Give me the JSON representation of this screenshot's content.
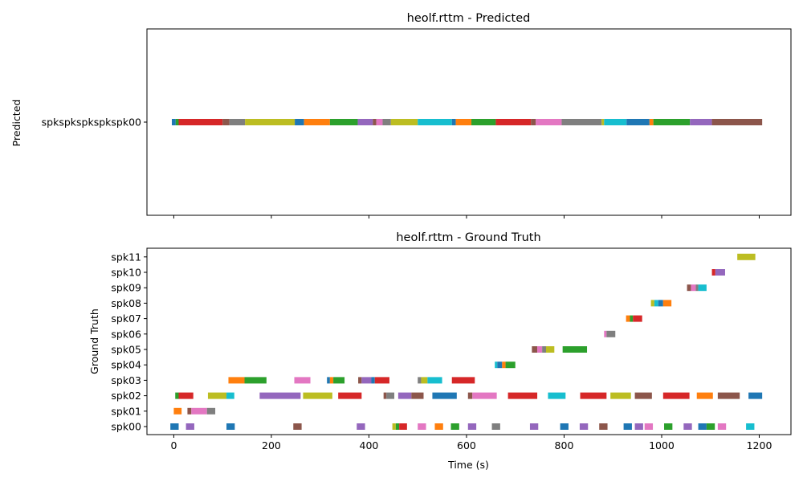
{
  "chart_data": [
    {
      "type": "timeline",
      "title": "heolf.rttm - Predicted",
      "ylabel": "Predicted",
      "xlabel": "",
      "xlim": [
        -55,
        1265
      ],
      "xticks": [
        0,
        200,
        400,
        600,
        800,
        1000,
        1200
      ],
      "show_xtick_labels": false,
      "rows": [
        "spkspkspkspkspk00"
      ],
      "colors": [
        "#1f77b4",
        "#ff7f0e",
        "#2ca02c",
        "#d62728",
        "#9467bd",
        "#8c564b",
        "#e377c2",
        "#7f7f7f",
        "#bcbd22",
        "#17becf"
      ],
      "segments": [
        {
          "row": 0,
          "start": -4,
          "end": 4,
          "color": "#1f77b4"
        },
        {
          "row": 0,
          "start": 4,
          "end": 10,
          "color": "#2ca02c"
        },
        {
          "row": 0,
          "start": 10,
          "end": 100,
          "color": "#d62728"
        },
        {
          "row": 0,
          "start": 100,
          "end": 114,
          "color": "#8c564b"
        },
        {
          "row": 0,
          "start": 114,
          "end": 146,
          "color": "#7f7f7f"
        },
        {
          "row": 0,
          "start": 146,
          "end": 248,
          "color": "#bcbd22"
        },
        {
          "row": 0,
          "start": 248,
          "end": 267,
          "color": "#1f77b4"
        },
        {
          "row": 0,
          "start": 267,
          "end": 320,
          "color": "#ff7f0e"
        },
        {
          "row": 0,
          "start": 320,
          "end": 377,
          "color": "#2ca02c"
        },
        {
          "row": 0,
          "start": 377,
          "end": 408,
          "color": "#9467bd"
        },
        {
          "row": 0,
          "start": 408,
          "end": 415,
          "color": "#8c564b"
        },
        {
          "row": 0,
          "start": 415,
          "end": 428,
          "color": "#e377c2"
        },
        {
          "row": 0,
          "start": 428,
          "end": 445,
          "color": "#7f7f7f"
        },
        {
          "row": 0,
          "start": 445,
          "end": 500,
          "color": "#bcbd22"
        },
        {
          "row": 0,
          "start": 500,
          "end": 570,
          "color": "#17becf"
        },
        {
          "row": 0,
          "start": 570,
          "end": 578,
          "color": "#1f77b4"
        },
        {
          "row": 0,
          "start": 578,
          "end": 610,
          "color": "#ff7f0e"
        },
        {
          "row": 0,
          "start": 610,
          "end": 660,
          "color": "#2ca02c"
        },
        {
          "row": 0,
          "start": 660,
          "end": 732,
          "color": "#d62728"
        },
        {
          "row": 0,
          "start": 732,
          "end": 742,
          "color": "#8c564b"
        },
        {
          "row": 0,
          "start": 742,
          "end": 795,
          "color": "#e377c2"
        },
        {
          "row": 0,
          "start": 795,
          "end": 877,
          "color": "#7f7f7f"
        },
        {
          "row": 0,
          "start": 877,
          "end": 882,
          "color": "#bcbd22"
        },
        {
          "row": 0,
          "start": 882,
          "end": 928,
          "color": "#17becf"
        },
        {
          "row": 0,
          "start": 928,
          "end": 975,
          "color": "#1f77b4"
        },
        {
          "row": 0,
          "start": 975,
          "end": 983,
          "color": "#ff7f0e"
        },
        {
          "row": 0,
          "start": 983,
          "end": 1058,
          "color": "#2ca02c"
        },
        {
          "row": 0,
          "start": 1058,
          "end": 1103,
          "color": "#9467bd"
        },
        {
          "row": 0,
          "start": 1103,
          "end": 1206,
          "color": "#8c564b"
        }
      ]
    },
    {
      "type": "timeline",
      "title": "heolf.rttm - Ground Truth",
      "ylabel": "Ground Truth",
      "xlabel": "Time (s)",
      "xlim": [
        -55,
        1265
      ],
      "xticks": [
        0,
        200,
        400,
        600,
        800,
        1000,
        1200
      ],
      "show_xtick_labels": true,
      "rows": [
        "spk00",
        "spk01",
        "spk02",
        "spk03",
        "spk04",
        "spk05",
        "spk06",
        "spk07",
        "spk08",
        "spk09",
        "spk10",
        "spk11"
      ],
      "segments": [
        {
          "row": 0,
          "start": -7,
          "end": 10,
          "color": "#1f77b4"
        },
        {
          "row": 0,
          "start": 25,
          "end": 42,
          "color": "#9467bd"
        },
        {
          "row": 0,
          "start": 108,
          "end": 125,
          "color": "#1f77b4"
        },
        {
          "row": 0,
          "start": 245,
          "end": 262,
          "color": "#8c564b"
        },
        {
          "row": 0,
          "start": 375,
          "end": 392,
          "color": "#9467bd"
        },
        {
          "row": 0,
          "start": 448,
          "end": 455,
          "color": "#bcbd22"
        },
        {
          "row": 0,
          "start": 455,
          "end": 462,
          "color": "#2ca02c"
        },
        {
          "row": 0,
          "start": 462,
          "end": 478,
          "color": "#d62728"
        },
        {
          "row": 0,
          "start": 500,
          "end": 517,
          "color": "#e377c2"
        },
        {
          "row": 0,
          "start": 535,
          "end": 552,
          "color": "#ff7f0e"
        },
        {
          "row": 0,
          "start": 568,
          "end": 585,
          "color": "#2ca02c"
        },
        {
          "row": 0,
          "start": 603,
          "end": 620,
          "color": "#9467bd"
        },
        {
          "row": 0,
          "start": 652,
          "end": 669,
          "color": "#7f7f7f"
        },
        {
          "row": 0,
          "start": 730,
          "end": 747,
          "color": "#9467bd"
        },
        {
          "row": 0,
          "start": 792,
          "end": 809,
          "color": "#1f77b4"
        },
        {
          "row": 0,
          "start": 832,
          "end": 849,
          "color": "#9467bd"
        },
        {
          "row": 0,
          "start": 872,
          "end": 889,
          "color": "#8c564b"
        },
        {
          "row": 0,
          "start": 922,
          "end": 939,
          "color": "#1f77b4"
        },
        {
          "row": 0,
          "start": 945,
          "end": 962,
          "color": "#9467bd"
        },
        {
          "row": 0,
          "start": 965,
          "end": 982,
          "color": "#e377c2"
        },
        {
          "row": 0,
          "start": 1005,
          "end": 1022,
          "color": "#2ca02c"
        },
        {
          "row": 0,
          "start": 1045,
          "end": 1062,
          "color": "#9467bd"
        },
        {
          "row": 0,
          "start": 1075,
          "end": 1092,
          "color": "#1f77b4"
        },
        {
          "row": 0,
          "start": 1092,
          "end": 1109,
          "color": "#2ca02c"
        },
        {
          "row": 0,
          "start": 1115,
          "end": 1132,
          "color": "#e377c2"
        },
        {
          "row": 0,
          "start": 1173,
          "end": 1190,
          "color": "#17becf"
        },
        {
          "row": 1,
          "start": 0,
          "end": 16,
          "color": "#ff7f0e"
        },
        {
          "row": 1,
          "start": 28,
          "end": 36,
          "color": "#8c564b"
        },
        {
          "row": 1,
          "start": 36,
          "end": 68,
          "color": "#e377c2"
        },
        {
          "row": 1,
          "start": 68,
          "end": 85,
          "color": "#7f7f7f"
        },
        {
          "row": 2,
          "start": 3,
          "end": 10,
          "color": "#2ca02c"
        },
        {
          "row": 2,
          "start": 10,
          "end": 40,
          "color": "#d62728"
        },
        {
          "row": 2,
          "start": 70,
          "end": 108,
          "color": "#bcbd22"
        },
        {
          "row": 2,
          "start": 108,
          "end": 124,
          "color": "#17becf"
        },
        {
          "row": 2,
          "start": 176,
          "end": 260,
          "color": "#9467bd"
        },
        {
          "row": 2,
          "start": 265,
          "end": 325,
          "color": "#bcbd22"
        },
        {
          "row": 2,
          "start": 337,
          "end": 385,
          "color": "#d62728"
        },
        {
          "row": 2,
          "start": 430,
          "end": 436,
          "color": "#8c564b"
        },
        {
          "row": 2,
          "start": 436,
          "end": 452,
          "color": "#7f7f7f"
        },
        {
          "row": 2,
          "start": 460,
          "end": 487,
          "color": "#9467bd"
        },
        {
          "row": 2,
          "start": 487,
          "end": 512,
          "color": "#8c564b"
        },
        {
          "row": 2,
          "start": 530,
          "end": 580,
          "color": "#1f77b4"
        },
        {
          "row": 2,
          "start": 603,
          "end": 612,
          "color": "#8c564b"
        },
        {
          "row": 2,
          "start": 612,
          "end": 662,
          "color": "#e377c2"
        },
        {
          "row": 2,
          "start": 685,
          "end": 745,
          "color": "#d62728"
        },
        {
          "row": 2,
          "start": 767,
          "end": 803,
          "color": "#17becf"
        },
        {
          "row": 2,
          "start": 833,
          "end": 887,
          "color": "#d62728"
        },
        {
          "row": 2,
          "start": 895,
          "end": 937,
          "color": "#bcbd22"
        },
        {
          "row": 2,
          "start": 945,
          "end": 980,
          "color": "#8c564b"
        },
        {
          "row": 2,
          "start": 1003,
          "end": 1057,
          "color": "#d62728"
        },
        {
          "row": 2,
          "start": 1072,
          "end": 1105,
          "color": "#ff7f0e"
        },
        {
          "row": 2,
          "start": 1115,
          "end": 1160,
          "color": "#8c564b"
        },
        {
          "row": 2,
          "start": 1178,
          "end": 1206,
          "color": "#1f77b4"
        },
        {
          "row": 3,
          "start": 112,
          "end": 145,
          "color": "#ff7f0e"
        },
        {
          "row": 3,
          "start": 145,
          "end": 190,
          "color": "#2ca02c"
        },
        {
          "row": 3,
          "start": 247,
          "end": 280,
          "color": "#e377c2"
        },
        {
          "row": 3,
          "start": 314,
          "end": 320,
          "color": "#1f77b4"
        },
        {
          "row": 3,
          "start": 320,
          "end": 327,
          "color": "#ff7f0e"
        },
        {
          "row": 3,
          "start": 327,
          "end": 350,
          "color": "#2ca02c"
        },
        {
          "row": 3,
          "start": 378,
          "end": 385,
          "color": "#8c564b"
        },
        {
          "row": 3,
          "start": 385,
          "end": 405,
          "color": "#9467bd"
        },
        {
          "row": 3,
          "start": 405,
          "end": 412,
          "color": "#1f77b4"
        },
        {
          "row": 3,
          "start": 412,
          "end": 442,
          "color": "#d62728"
        },
        {
          "row": 3,
          "start": 500,
          "end": 507,
          "color": "#7f7f7f"
        },
        {
          "row": 3,
          "start": 507,
          "end": 520,
          "color": "#bcbd22"
        },
        {
          "row": 3,
          "start": 520,
          "end": 550,
          "color": "#17becf"
        },
        {
          "row": 3,
          "start": 570,
          "end": 617,
          "color": "#d62728"
        },
        {
          "row": 4,
          "start": 658,
          "end": 663,
          "color": "#17becf"
        },
        {
          "row": 4,
          "start": 663,
          "end": 673,
          "color": "#1f77b4"
        },
        {
          "row": 4,
          "start": 673,
          "end": 680,
          "color": "#ff7f0e"
        },
        {
          "row": 4,
          "start": 680,
          "end": 700,
          "color": "#2ca02c"
        },
        {
          "row": 5,
          "start": 734,
          "end": 745,
          "color": "#8c564b"
        },
        {
          "row": 5,
          "start": 745,
          "end": 755,
          "color": "#e377c2"
        },
        {
          "row": 5,
          "start": 755,
          "end": 763,
          "color": "#7f7f7f"
        },
        {
          "row": 5,
          "start": 763,
          "end": 780,
          "color": "#bcbd22"
        },
        {
          "row": 5,
          "start": 797,
          "end": 847,
          "color": "#2ca02c"
        },
        {
          "row": 6,
          "start": 882,
          "end": 887,
          "color": "#e377c2"
        },
        {
          "row": 6,
          "start": 887,
          "end": 905,
          "color": "#7f7f7f"
        },
        {
          "row": 7,
          "start": 927,
          "end": 935,
          "color": "#ff7f0e"
        },
        {
          "row": 7,
          "start": 935,
          "end": 941,
          "color": "#2ca02c"
        },
        {
          "row": 7,
          "start": 941,
          "end": 960,
          "color": "#d62728"
        },
        {
          "row": 8,
          "start": 978,
          "end": 985,
          "color": "#bcbd22"
        },
        {
          "row": 8,
          "start": 985,
          "end": 993,
          "color": "#17becf"
        },
        {
          "row": 8,
          "start": 993,
          "end": 1003,
          "color": "#1f77b4"
        },
        {
          "row": 8,
          "start": 1003,
          "end": 1020,
          "color": "#ff7f0e"
        },
        {
          "row": 9,
          "start": 1052,
          "end": 1060,
          "color": "#8c564b"
        },
        {
          "row": 9,
          "start": 1060,
          "end": 1070,
          "color": "#e377c2"
        },
        {
          "row": 9,
          "start": 1070,
          "end": 1075,
          "color": "#7f7f7f"
        },
        {
          "row": 9,
          "start": 1075,
          "end": 1092,
          "color": "#17becf"
        },
        {
          "row": 10,
          "start": 1103,
          "end": 1110,
          "color": "#d62728"
        },
        {
          "row": 10,
          "start": 1110,
          "end": 1130,
          "color": "#9467bd"
        },
        {
          "row": 11,
          "start": 1155,
          "end": 1192,
          "color": "#bcbd22"
        }
      ]
    }
  ]
}
